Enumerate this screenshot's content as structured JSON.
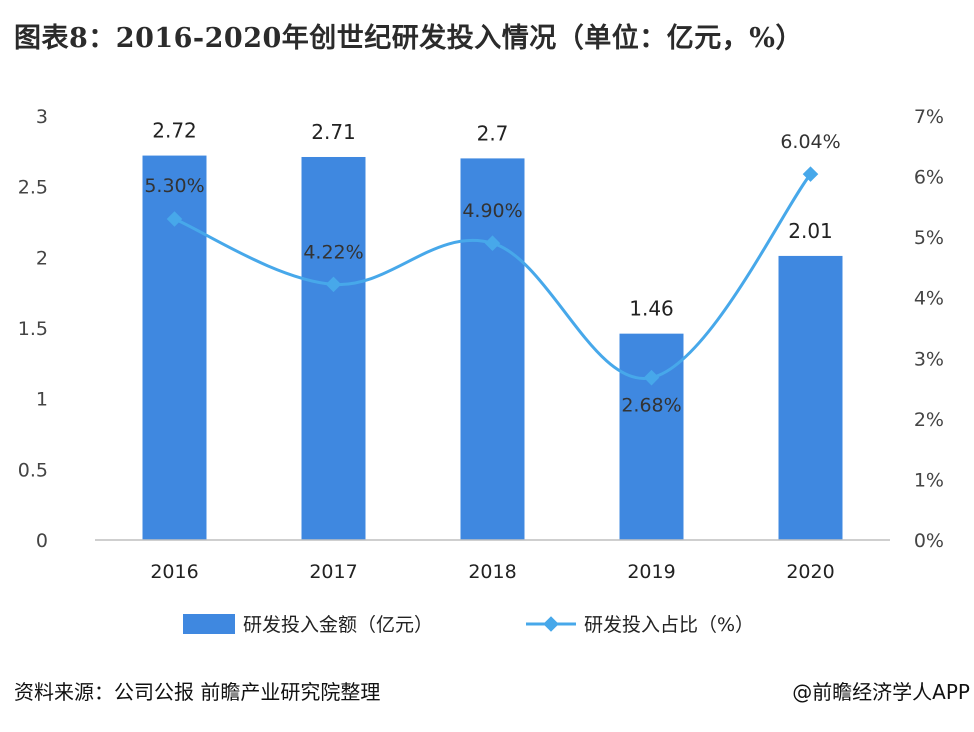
{
  "title": "图表8：2016-2020年创世纪研发投入情况（单位：亿元，%）",
  "source": "资料来源：公司公报  前瞻产业研究院整理",
  "credit": "@前瞻经济学人APP",
  "chart_data": {
    "type": "bar+line",
    "categories": [
      "2016",
      "2017",
      "2018",
      "2019",
      "2020"
    ],
    "series": [
      {
        "name": "研发投入金额（亿元）",
        "type": "bar",
        "axis": "left",
        "values": [
          2.72,
          2.71,
          2.7,
          1.46,
          2.01
        ],
        "labels": [
          "2.72",
          "2.71",
          "2.7",
          "1.46",
          "2.01"
        ],
        "color": "#3f88e0"
      },
      {
        "name": "研发投入占比（%）",
        "type": "line",
        "axis": "right",
        "values": [
          5.3,
          4.22,
          4.9,
          2.68,
          6.04
        ],
        "labels": [
          "5.30%",
          "4.22%",
          "4.90%",
          "2.68%",
          "6.04%"
        ],
        "color": "#47a8ea"
      }
    ],
    "y_left": {
      "min": 0,
      "max": 3,
      "ticks": [
        "0",
        "0.5",
        "1",
        "1.5",
        "2",
        "2.5",
        "3"
      ]
    },
    "y_right": {
      "min": 0,
      "max": 7,
      "ticks": [
        "0%",
        "1%",
        "2%",
        "3%",
        "4%",
        "5%",
        "6%",
        "7%"
      ]
    },
    "grid": false,
    "legend_position": "bottom"
  }
}
